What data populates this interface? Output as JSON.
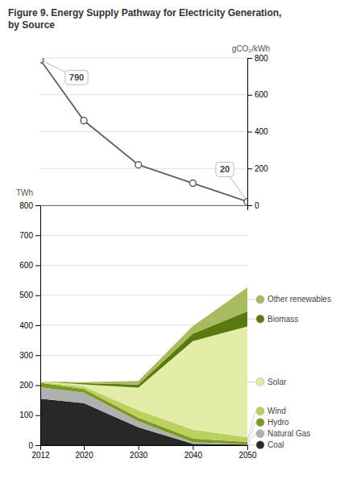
{
  "chart_data": [
    {
      "type": "line",
      "title": "Figure 9. Energy Supply Pathway for Electricity Generation,\nby Source",
      "x": [
        2012,
        2020,
        2030,
        2040,
        2050
      ],
      "xlim": [
        2012,
        2050
      ],
      "y2lim": [
        0,
        800
      ],
      "y2ticks": [
        0,
        200,
        400,
        600,
        800
      ],
      "y2label": "gCO₂/kWh",
      "grid": true,
      "tick_labels": "y",
      "series": [
        {
          "values": [
            790,
            460,
            220,
            120,
            20
          ],
          "color": "#606060",
          "marker": "circle",
          "axis": "y2"
        }
      ],
      "annotations": [
        {
          "text": "790",
          "x": 2012,
          "y": 790
        },
        {
          "text": "20",
          "x": 2050,
          "y": 20
        }
      ]
    },
    {
      "type": "area",
      "stacked": true,
      "x": [
        2012,
        2020,
        2030,
        2040,
        2050
      ],
      "xlim": [
        2012,
        2050
      ],
      "xticks": [
        2012,
        2020,
        2030,
        2040,
        2050
      ],
      "ylim": [
        0,
        800
      ],
      "yticks": [
        0,
        100,
        200,
        300,
        400,
        500,
        600,
        700,
        800
      ],
      "ylabel": "TWh",
      "grid": true,
      "legend": "right",
      "series": [
        {
          "name": "Coal",
          "color": "#282828",
          "values": [
            155,
            140,
            60,
            5,
            2
          ]
        },
        {
          "name": "Natural Gas",
          "color": "#b0b0b0",
          "values": [
            38,
            35,
            20,
            5,
            1
          ]
        },
        {
          "name": "Hydro",
          "color": "#7a9a20",
          "values": [
            15,
            12,
            12,
            12,
            8
          ]
        },
        {
          "name": "Wind",
          "color": "#bcd060",
          "values": [
            3,
            8,
            25,
            30,
            15
          ]
        },
        {
          "name": "Solar",
          "color": "#e4eda8",
          "values": [
            2,
            8,
            75,
            295,
            370
          ]
        },
        {
          "name": "Biomass",
          "color": "#5a7a10",
          "values": [
            0,
            4,
            10,
            25,
            50
          ]
        },
        {
          "name": "Other renewables",
          "color": "#aaba60",
          "values": [
            0,
            3,
            12,
            25,
            80
          ]
        }
      ]
    }
  ]
}
